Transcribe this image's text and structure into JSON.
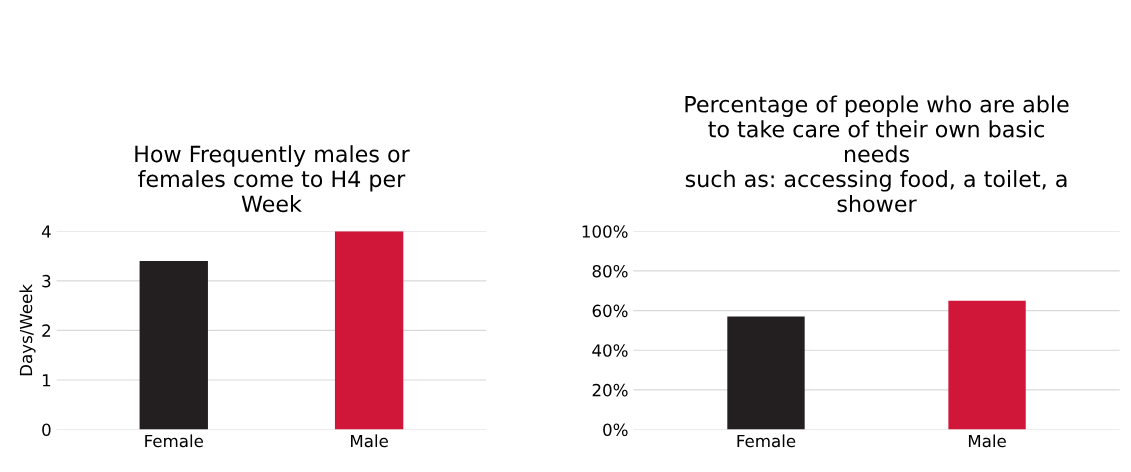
{
  "chart_data": [
    {
      "type": "bar",
      "title": "How Frequently males or\nfemales come to H4 per\nWeek",
      "ylabel": "Days/Week",
      "categories": [
        "Female",
        "Male"
      ],
      "values": [
        3.4,
        4.0
      ],
      "colors": [
        "#231f20",
        "#d0173a"
      ],
      "ylim": [
        0,
        4
      ],
      "yticks": [
        0,
        1,
        2,
        3,
        4
      ],
      "grid": "y"
    },
    {
      "type": "bar",
      "title": "Percentage of people who are able\nto take care of their own basic\nneeds\nsuch as: accessing food, a toilet, a\nshower",
      "categories": [
        "Female",
        "Male"
      ],
      "values": [
        57,
        65
      ],
      "colors": [
        "#231f20",
        "#d0173a"
      ],
      "ylim": [
        0,
        100
      ],
      "yticks": [
        {
          "value": 0,
          "label": "0%"
        },
        {
          "value": 20,
          "label": "20%"
        },
        {
          "value": 40,
          "label": "40%"
        },
        {
          "value": 60,
          "label": "60%"
        },
        {
          "value": 80,
          "label": "80%"
        },
        {
          "value": 100,
          "label": "100%"
        }
      ],
      "grid": "y"
    }
  ]
}
